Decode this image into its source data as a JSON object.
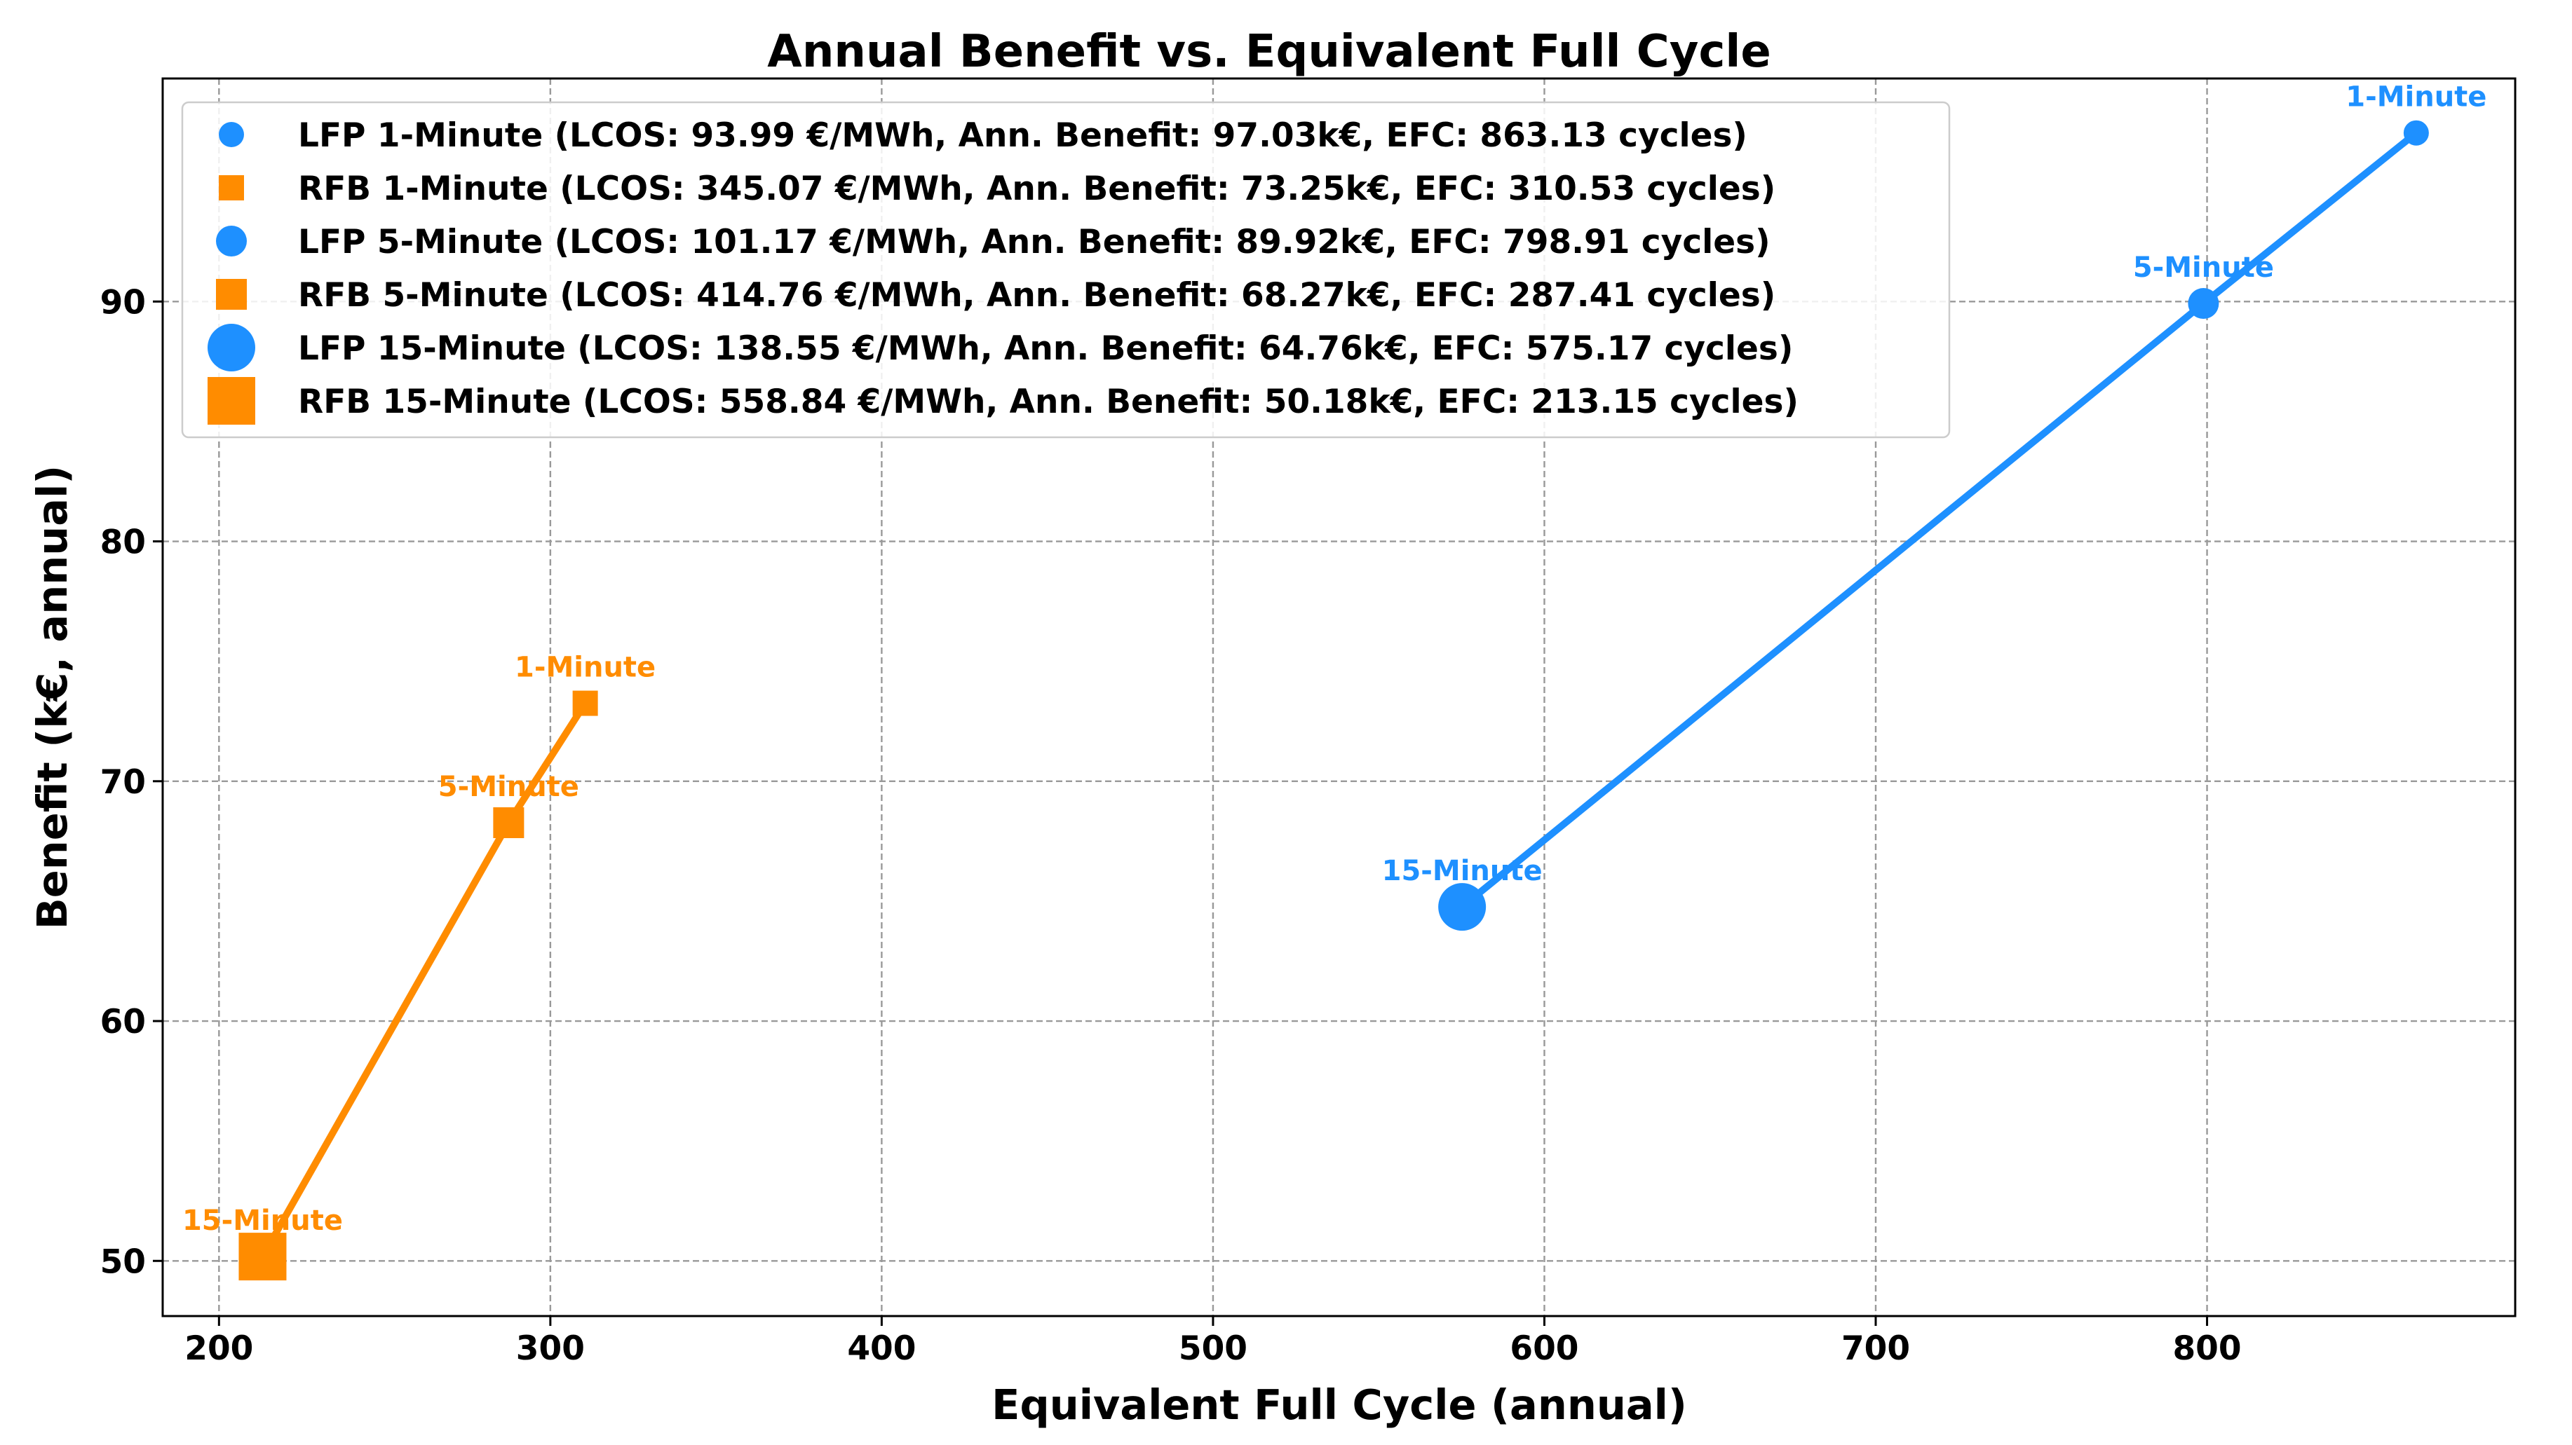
{
  "chart_data": {
    "type": "line",
    "title": "Annual Benefit vs. Equivalent Full Cycle",
    "xlabel": "Equivalent Full Cycle (annual)",
    "ylabel": "Benefit (k€, annual)",
    "xlim": [
      183,
      893
    ],
    "ylim": [
      47.7,
      99.3
    ],
    "xticks": [
      200,
      300,
      400,
      500,
      600,
      700,
      800
    ],
    "yticks": [
      50,
      60,
      70,
      80,
      90
    ],
    "grid": true,
    "legend_position": "top-left",
    "series": [
      {
        "technology": "LFP",
        "color": "#1E90FF",
        "marker": "circle",
        "points": [
          {
            "resolution": "1-Minute",
            "x": 863.13,
            "y": 97.03,
            "label": "1-Minute",
            "legend": "LFP 1-Minute (LCOS: 93.99 €/MWh, Ann. Benefit: 97.03k€, EFC: 863.13 cycles)"
          },
          {
            "resolution": "5-Minute",
            "x": 798.91,
            "y": 89.92,
            "label": "5-Minute",
            "legend": "LFP 5-Minute (LCOS: 101.17 €/MWh, Ann. Benefit: 89.92k€, EFC: 798.91 cycles)"
          },
          {
            "resolution": "15-Minute",
            "x": 575.17,
            "y": 64.76,
            "label": "15-Minute",
            "legend": "LFP 15-Minute (LCOS: 138.55 €/MWh, Ann. Benefit: 64.76k€, EFC: 575.17 cycles)"
          }
        ]
      },
      {
        "technology": "RFB",
        "color": "#FF8C00",
        "marker": "square",
        "points": [
          {
            "resolution": "1-Minute",
            "x": 310.53,
            "y": 73.25,
            "label": "1-Minute",
            "legend": "RFB 1-Minute (LCOS: 345.07 €/MWh, Ann. Benefit: 73.25k€, EFC: 310.53 cycles)"
          },
          {
            "resolution": "5-Minute",
            "x": 287.41,
            "y": 68.27,
            "label": "5-Minute",
            "legend": "RFB 5-Minute (LCOS: 414.76 €/MWh, Ann. Benefit: 68.27k€, EFC: 287.41 cycles)"
          },
          {
            "resolution": "15-Minute",
            "x": 213.15,
            "y": 50.18,
            "label": "15-Minute",
            "legend": "RFB 15-Minute (LCOS: 558.84 €/MWh, Ann. Benefit: 50.18k€, EFC: 213.15 cycles)"
          }
        ]
      }
    ],
    "legend_order": [
      {
        "series": 0,
        "point": 0
      },
      {
        "series": 1,
        "point": 0
      },
      {
        "series": 0,
        "point": 1
      },
      {
        "series": 1,
        "point": 1
      },
      {
        "series": 0,
        "point": 2
      },
      {
        "series": 1,
        "point": 2
      }
    ]
  }
}
